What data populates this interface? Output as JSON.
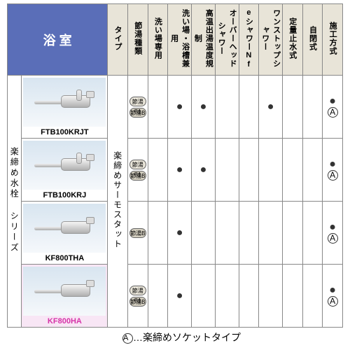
{
  "header": {
    "category": "浴 室",
    "columns": [
      "タイプ",
      "節湯種類",
      "洗い場専用",
      "洗い場・浴槽兼用",
      "高温出湯温度規制",
      "オーバーヘッドシャワー",
      "eシャワーNf",
      "ワンストップシャワー",
      "定量止水式",
      "自閉式",
      "施工方式"
    ]
  },
  "series_label": "楽締め水栓 シリーズ",
  "type_label": "楽締めサーモスタット",
  "badges": {
    "b1": "節湯B1",
    "b": "節湯B"
  },
  "products": [
    {
      "model": "FTB100KRJT",
      "highlighted": false,
      "cells": [
        "badges",
        "",
        "dot",
        "dot",
        "",
        "",
        "dot",
        "",
        "",
        "dot_a"
      ]
    },
    {
      "model": "FTB100KRJ",
      "highlighted": false,
      "cells": [
        "badges",
        "",
        "dot",
        "dot",
        "",
        "",
        "",
        "",
        "",
        "dot_a"
      ]
    },
    {
      "model": "KF800THA",
      "highlighted": false,
      "cells": [
        "badge_b",
        "",
        "dot",
        "",
        "",
        "",
        "",
        "",
        "",
        "dot_a"
      ]
    },
    {
      "model": "KF800HA",
      "highlighted": true,
      "cells": [
        "badges",
        "",
        "dot",
        "",
        "",
        "",
        "",
        "",
        "",
        "dot_a"
      ]
    }
  ],
  "footnote": {
    "marker": "A",
    "text": "…楽締めソケットタイプ"
  },
  "colors": {
    "header_bg": "#5a6eb8",
    "col_bg": "#e8e4d8",
    "highlight_bg": "#f8e6f5",
    "highlight_text": "#d633a8",
    "border": "#888888"
  }
}
